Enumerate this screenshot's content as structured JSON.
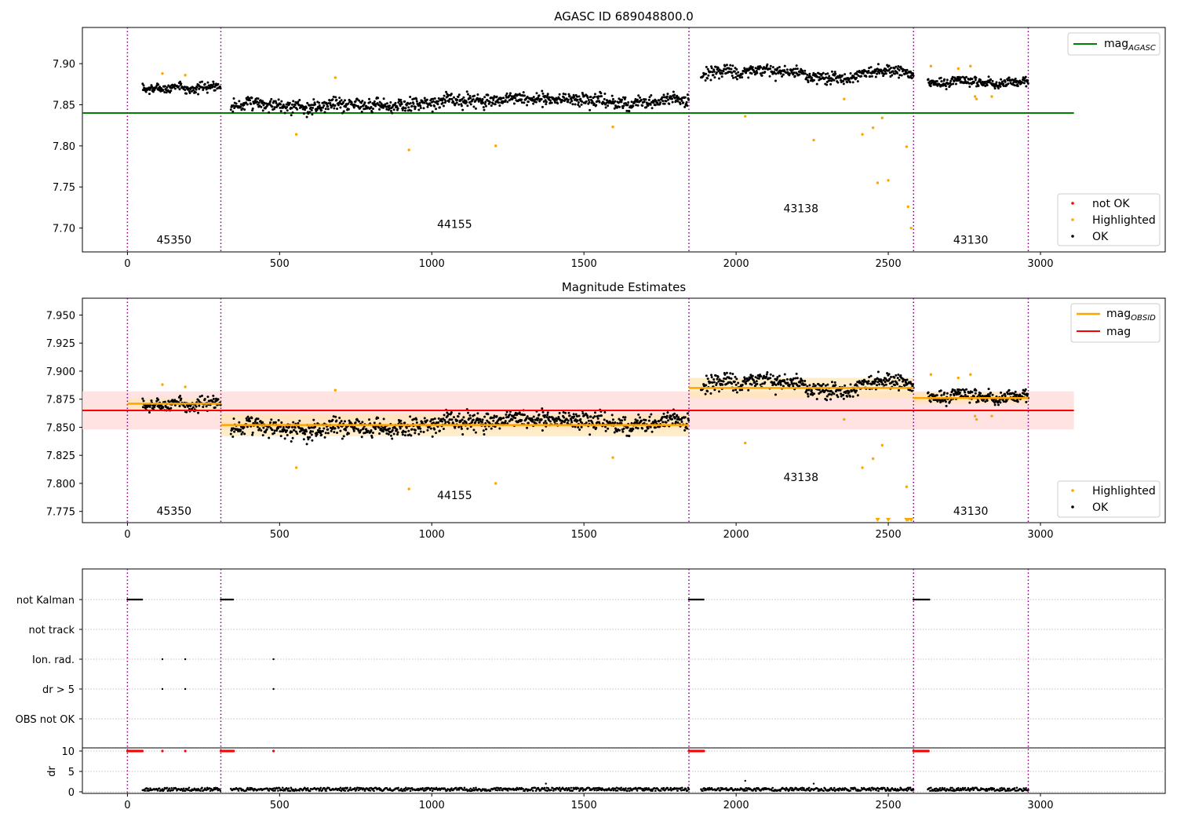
{
  "chart_data": [
    {
      "type": "scatter",
      "title": "AGASC ID 689048800.0",
      "xlim": [
        -148,
        3410
      ],
      "ylim": [
        7.671,
        7.944
      ],
      "xticks": [
        0,
        500,
        1000,
        1500,
        2000,
        2500,
        3000
      ],
      "yticks": [
        7.7,
        7.75,
        7.8,
        7.85,
        7.9
      ],
      "yticklabels": [
        "7.70",
        "7.75",
        "7.80",
        "7.85",
        "7.90"
      ],
      "obs_boundaries": [
        0,
        307,
        1845,
        2583,
        2960
      ],
      "obs_labels": [
        {
          "text": "45350",
          "x": 153,
          "y": 7.681
        },
        {
          "text": "44155",
          "x": 1075,
          "y": 7.7
        },
        {
          "text": "43138",
          "x": 2213,
          "y": 7.719
        },
        {
          "text": "43130",
          "x": 2771,
          "y": 7.681
        }
      ],
      "reference_lines": [
        {
          "name": "mag_AGASC",
          "y": 7.84,
          "x": [
            -148,
            3110
          ],
          "color": "#008000"
        }
      ],
      "line_legend": {
        "main": "mag",
        "sub": "AGASC",
        "placement": "upper right"
      },
      "points_legend": {
        "entries": [
          "not OK",
          "Highlighted",
          "OK"
        ],
        "placement": "lower right"
      },
      "ok_segments": [
        {
          "x": [
            50,
            307
          ],
          "mean": 7.871,
          "amp": 0.006,
          "wander": 0.003
        },
        {
          "x": [
            340,
            1845
          ],
          "mean": 7.851,
          "amp": 0.009,
          "wander": 0.007
        },
        {
          "x": [
            1885,
            2583
          ],
          "mean": 7.886,
          "amp": 0.008,
          "wander": 0.006
        },
        {
          "x": [
            2630,
            2960
          ],
          "mean": 7.877,
          "amp": 0.006,
          "wander": 0.003
        }
      ],
      "highlighted_points": [
        [
          115,
          7.888
        ],
        [
          190,
          7.886
        ],
        [
          555,
          7.814
        ],
        [
          683,
          7.883
        ],
        [
          925,
          7.795
        ],
        [
          1210,
          7.8
        ],
        [
          1595,
          7.823
        ],
        [
          2030,
          7.836
        ],
        [
          2255,
          7.807
        ],
        [
          2355,
          7.857
        ],
        [
          2415,
          7.814
        ],
        [
          2450,
          7.822
        ],
        [
          2465,
          7.755
        ],
        [
          2480,
          7.834
        ],
        [
          2500,
          7.758
        ],
        [
          2560,
          7.799
        ],
        [
          2565,
          7.726
        ],
        [
          2575,
          7.7
        ],
        [
          2640,
          7.897
        ],
        [
          2730,
          7.894
        ],
        [
          2770,
          7.897
        ],
        [
          2785,
          7.86
        ],
        [
          2790,
          7.857
        ],
        [
          2840,
          7.86
        ]
      ],
      "colors": {
        "ok": "#000000",
        "highlighted": "#ffa500",
        "not_ok": "#ff0000",
        "boundary": "#800080"
      }
    },
    {
      "type": "scatter",
      "title": "Magnitude Estimates",
      "xlim": [
        -148,
        3410
      ],
      "ylim": [
        7.765,
        7.965
      ],
      "xticks": [
        0,
        500,
        1000,
        1500,
        2000,
        2500,
        3000
      ],
      "yticks": [
        7.775,
        7.8,
        7.825,
        7.85,
        7.875,
        7.9,
        7.925,
        7.95
      ],
      "yticklabels": [
        "7.775",
        "7.800",
        "7.825",
        "7.850",
        "7.875",
        "7.900",
        "7.925",
        "7.950"
      ],
      "obs_boundaries": [
        0,
        307,
        1845,
        2583,
        2960
      ],
      "obs_labels": [
        {
          "text": "45350",
          "x": 153,
          "y": 7.772
        },
        {
          "text": "44155",
          "x": 1075,
          "y": 7.786
        },
        {
          "text": "43138",
          "x": 2213,
          "y": 7.802
        },
        {
          "text": "43130",
          "x": 2771,
          "y": 7.772
        }
      ],
      "mag_line": {
        "name": "mag",
        "y": 7.865,
        "band": [
          7.848,
          7.882
        ],
        "x": [
          -148,
          3110
        ],
        "color": "#ff0000"
      },
      "obsid_mags": [
        {
          "x": [
            0,
            307
          ],
          "mag": 7.871,
          "band": [
            7.866,
            7.876
          ]
        },
        {
          "x": [
            307,
            1845
          ],
          "mag": 7.852,
          "band": [
            7.842,
            7.862
          ]
        },
        {
          "x": [
            1845,
            2583
          ],
          "mag": 7.885,
          "band": [
            7.876,
            7.894
          ]
        },
        {
          "x": [
            2583,
            2960
          ],
          "mag": 7.876,
          "band": [
            7.871,
            7.881
          ]
        }
      ],
      "line_legend": [
        {
          "main": "mag",
          "sub": "OBSID"
        },
        {
          "main": "mag",
          "sub": ""
        }
      ],
      "points_legend": {
        "entries": [
          "Highlighted",
          "OK"
        ],
        "placement": "lower right"
      },
      "ok_segments": [
        {
          "x": [
            50,
            307
          ],
          "mean": 7.871,
          "amp": 0.006,
          "wander": 0.003
        },
        {
          "x": [
            340,
            1845
          ],
          "mean": 7.851,
          "amp": 0.009,
          "wander": 0.007
        },
        {
          "x": [
            1885,
            2583
          ],
          "mean": 7.886,
          "amp": 0.008,
          "wander": 0.006
        },
        {
          "x": [
            2630,
            2960
          ],
          "mean": 7.877,
          "amp": 0.006,
          "wander": 0.003
        }
      ],
      "highlighted_points": [
        [
          115,
          7.888
        ],
        [
          190,
          7.886
        ],
        [
          555,
          7.814
        ],
        [
          683,
          7.883
        ],
        [
          925,
          7.795
        ],
        [
          1210,
          7.8
        ],
        [
          1595,
          7.823
        ],
        [
          2030,
          7.836
        ],
        [
          2355,
          7.857
        ],
        [
          2415,
          7.814
        ],
        [
          2450,
          7.822
        ],
        [
          2480,
          7.834
        ],
        [
          2560,
          7.797
        ],
        [
          2640,
          7.897
        ],
        [
          2730,
          7.894
        ],
        [
          2770,
          7.897
        ],
        [
          2785,
          7.86
        ],
        [
          2790,
          7.857
        ],
        [
          2840,
          7.86
        ]
      ],
      "clipped_points": [
        2465,
        2500,
        2560,
        2565,
        2575
      ],
      "colors": {
        "ok": "#000000",
        "highlighted": "#ffa500",
        "obsid_line": "#ffa500",
        "mag_band": "#ffdcdc",
        "obsid_band": "#ffe5b4",
        "boundary": "#800080"
      }
    },
    {
      "type": "scatter",
      "title": "",
      "xlim": [
        -148,
        3410
      ],
      "xticks": [
        0,
        500,
        1000,
        1500,
        2000,
        2500,
        3000
      ],
      "flag_rows": [
        "not Kalman",
        "not track",
        "Ion. rad.",
        "dr > 5",
        "OBS not OK"
      ],
      "flag_points": {
        "not Kalman": [
          [
            0,
            50
          ],
          [
            307,
            350
          ],
          [
            1845,
            1895
          ],
          [
            2583,
            2635
          ]
        ],
        "Ion. rad.": [
          115,
          190,
          480
        ],
        "dr > 5": [
          115,
          190,
          480
        ]
      },
      "dr_ylim": [
        -0.8,
        10.5
      ],
      "dr_yticks": [
        0,
        5,
        10
      ],
      "dr_yticklabels": [
        "0",
        "5",
        "10"
      ],
      "dr_ylabel": "dr",
      "dr_high_value": 10,
      "dr_high_runs": [
        [
          0,
          50
        ],
        [
          307,
          350
        ],
        [
          1845,
          1895
        ],
        [
          2583,
          2635
        ]
      ],
      "dr_high_singles": [
        115,
        190,
        480
      ],
      "dr_outliers": [
        [
          1375,
          2.0
        ],
        [
          2030,
          2.7
        ],
        [
          2255,
          2.0
        ]
      ],
      "obs_boundaries": [
        0,
        307,
        1845,
        2583,
        2960
      ],
      "colors": {
        "points": "#000000",
        "dr_high": "#ff0000",
        "boundary": "#800080",
        "grid": "#b0b0b0"
      }
    }
  ]
}
